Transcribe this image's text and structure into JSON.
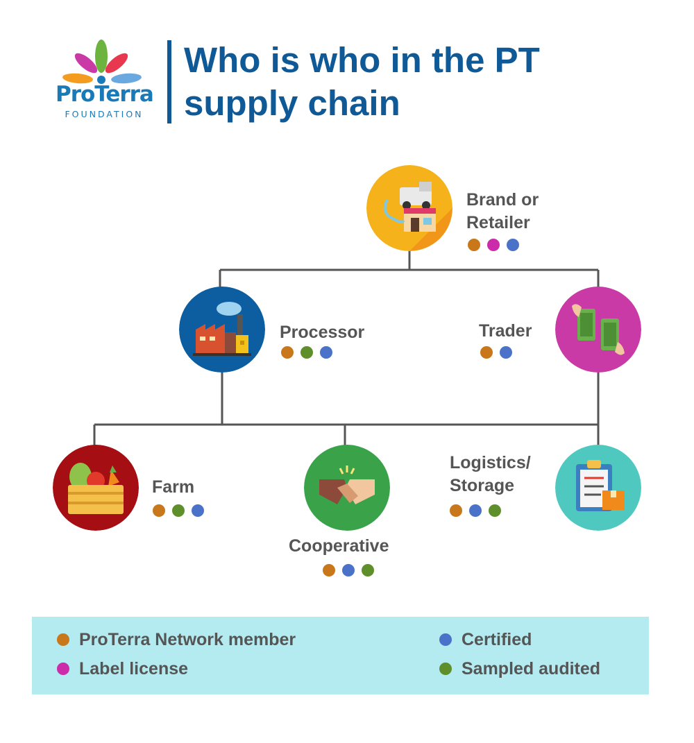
{
  "header": {
    "logo_name": "ProTerra",
    "logo_sub": "FOUNDATION",
    "title_line1": "Who is who in the PT",
    "title_line2": "supply chain"
  },
  "nodes": {
    "brand": {
      "label_line1": "Brand or",
      "label_line2": "Retailer",
      "icon": "store-truck-icon",
      "color": "#f5b21a",
      "badges": [
        "member",
        "label",
        "certified"
      ]
    },
    "processor": {
      "label": "Processor",
      "icon": "factory-icon",
      "color": "#0d5ea1",
      "badges": [
        "member",
        "audited",
        "certified"
      ]
    },
    "trader": {
      "label": "Trader",
      "icon": "money-exchange-icon",
      "color": "#c93aa7",
      "badges": [
        "member",
        "certified"
      ]
    },
    "farm": {
      "label": "Farm",
      "icon": "vegetable-crate-icon",
      "color": "#a50e12",
      "badges": [
        "member",
        "audited",
        "certified"
      ]
    },
    "cooperative": {
      "label": "Cooperative",
      "icon": "handshake-icon",
      "color": "#3aa34a",
      "badges": [
        "member",
        "certified",
        "audited"
      ]
    },
    "logistics": {
      "label_line1": "Logistics/",
      "label_line2": "Storage",
      "icon": "clipboard-box-icon",
      "color": "#4fc8c0",
      "badges": [
        "member",
        "certified",
        "audited"
      ]
    }
  },
  "legend": {
    "member": "ProTerra Network member",
    "label": "Label license",
    "certified": "Certified",
    "audited": "Sampled audited"
  },
  "colors": {
    "member": "#c8781a",
    "label": "#cc2ba9",
    "certified": "#4a72c8",
    "audited": "#5e8f2a",
    "title": "#0f5a96",
    "legend_bg": "#b3ebf0"
  }
}
